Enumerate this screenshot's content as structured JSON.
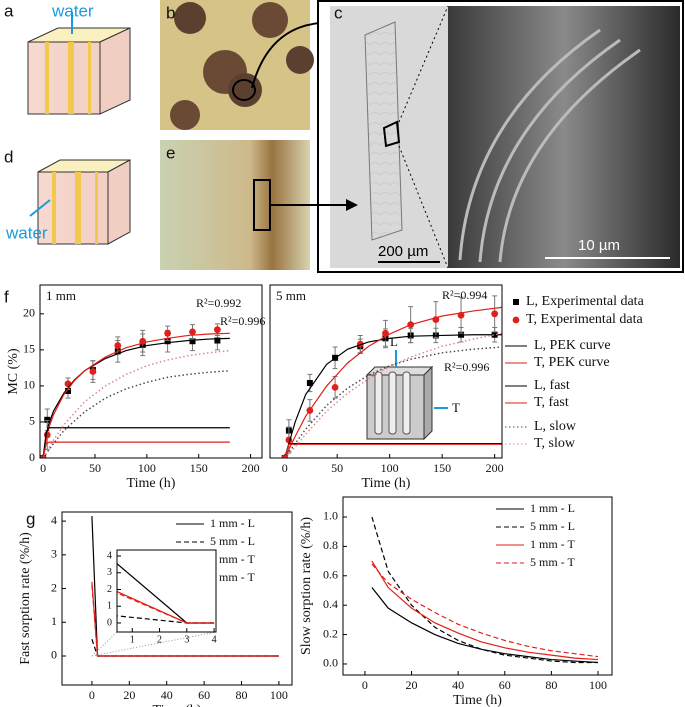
{
  "figure": {
    "panel_labels": [
      "a",
      "b",
      "c",
      "d",
      "e",
      "f",
      "g"
    ],
    "water_labels": [
      "water",
      "water"
    ],
    "scale_bars": [
      "200 µm",
      "10 µm"
    ],
    "inset_labels": [
      "L",
      "T"
    ]
  },
  "chart_data": [
    {
      "type": "line",
      "title": "1 mm",
      "xlabel": "Time (h)",
      "ylabel": "MC (%)",
      "xlim": [
        -3,
        211
      ],
      "ylim": [
        0,
        24
      ],
      "xticks": [
        0,
        50,
        100,
        150,
        200
      ],
      "yticks": [
        0,
        5,
        10,
        15,
        20
      ],
      "annotations": [
        "R²=0.992",
        "R²=0.996"
      ],
      "series": [
        {
          "color": "#000000",
          "marker": "square",
          "x": [
            0,
            4,
            24,
            48,
            72,
            96,
            120,
            144,
            168
          ],
          "values": [
            0,
            5.3,
            9.3,
            12.2,
            14.8,
            15.7,
            16.2,
            16.2,
            16.3
          ],
          "errors": [
            0,
            1.5,
            1,
            1.3,
            1.5,
            1.5,
            1.5,
            1.3,
            1.3
          ]
        },
        {
          "color": "#e0201b",
          "marker": "circle",
          "x": [
            0,
            4,
            24,
            48,
            72,
            96,
            120,
            144,
            168
          ],
          "values": [
            0,
            3.2,
            10.3,
            12,
            15.6,
            16.2,
            17.3,
            17.5,
            17.8
          ],
          "errors": [
            0,
            2,
            0.8,
            1.5,
            1.2,
            1.5,
            1,
            1,
            0.8
          ]
        },
        {
          "color": "#000000",
          "dash": "solid",
          "x": [
            0,
            5,
            10,
            20,
            30,
            40,
            60,
            80,
            100,
            120,
            140,
            160,
            180
          ],
          "values": [
            0,
            4.5,
            6.5,
            9,
            10.8,
            12.1,
            13.8,
            14.9,
            15.6,
            16,
            16.3,
            16.5,
            16.6
          ]
        },
        {
          "color": "#e0201b",
          "dash": "solid",
          "x": [
            0,
            5,
            10,
            20,
            30,
            40,
            60,
            80,
            100,
            120,
            140,
            160,
            180
          ],
          "values": [
            0,
            4,
            6,
            8.8,
            10.7,
            12.1,
            14,
            15.3,
            16.1,
            16.6,
            17,
            17.2,
            17.3
          ]
        },
        {
          "color": "#000000",
          "dash": "solid",
          "x": [
            0,
            3,
            6,
            180
          ],
          "values": [
            0,
            3.6,
            4.2,
            4.2
          ]
        },
        {
          "color": "#e0201b",
          "dash": "solid",
          "x": [
            0,
            3,
            6,
            180
          ],
          "values": [
            0,
            2,
            2.2,
            2.2
          ]
        },
        {
          "color": "#444444",
          "dash": "dotted",
          "x": [
            0,
            10,
            20,
            40,
            60,
            80,
            100,
            120,
            140,
            160,
            180
          ],
          "values": [
            0,
            2,
            3.8,
            6.4,
            8.3,
            9.6,
            10.5,
            11.2,
            11.6,
            11.9,
            12.1
          ]
        },
        {
          "color": "#e08080",
          "dash": "dotted",
          "x": [
            0,
            10,
            20,
            40,
            60,
            80,
            100,
            120,
            140,
            160,
            180
          ],
          "values": [
            0,
            2.5,
            4.6,
            7.8,
            10,
            11.6,
            12.8,
            13.6,
            14.2,
            14.6,
            14.9
          ]
        }
      ]
    },
    {
      "type": "line",
      "title": "5 mm",
      "xlabel": "Time (h)",
      "xlim": [
        -14,
        207
      ],
      "ylim": [
        0,
        24
      ],
      "xticks": [
        0,
        50,
        100,
        150,
        200
      ],
      "legend": "outside right",
      "annotations": [
        "R²=0.994",
        "R²=0.996"
      ],
      "series": [
        {
          "name": "L, Experimental data",
          "color": "#000000",
          "marker": "square",
          "x": [
            0,
            4,
            24,
            48,
            72,
            96,
            120,
            144,
            168,
            200
          ],
          "values": [
            0,
            3.8,
            10.4,
            13.9,
            15.5,
            16.6,
            17,
            17,
            17.1,
            17.1
          ],
          "errors": [
            0,
            1.5,
            1.2,
            1.5,
            1,
            1.3,
            1,
            1,
            1,
            1
          ]
        },
        {
          "name": "T, Experimental data",
          "color": "#e0201b",
          "marker": "circle",
          "x": [
            0,
            4,
            24,
            48,
            72,
            96,
            120,
            144,
            168,
            200
          ],
          "values": [
            0,
            2.5,
            6.6,
            9.8,
            15.8,
            17.3,
            18.5,
            19.2,
            19.8,
            20
          ],
          "errors": [
            0,
            1.8,
            1.5,
            1.5,
            1.2,
            1.8,
            2.5,
            2.5,
            2.5,
            2.5
          ]
        },
        {
          "name": "L, PEK curve",
          "color": "#000000",
          "dash": "solid",
          "x": [
            0,
            10,
            20,
            40,
            60,
            80,
            100,
            120,
            150,
            180,
            207
          ],
          "values": [
            0,
            5,
            8.8,
            13,
            15.1,
            16.1,
            16.6,
            16.9,
            17,
            17.1,
            17.1
          ]
        },
        {
          "name": "T, PEK curve",
          "color": "#e0201b",
          "dash": "solid",
          "x": [
            0,
            10,
            20,
            40,
            60,
            80,
            100,
            120,
            150,
            180,
            207
          ],
          "values": [
            0,
            3,
            5.8,
            10,
            13.2,
            15.5,
            17.2,
            18.5,
            19.7,
            20.4,
            20.9
          ]
        },
        {
          "name": "L, fast",
          "color": "#000000",
          "dash": "solid",
          "x": [
            0,
            4,
            207
          ],
          "values": [
            0,
            2,
            2
          ]
        },
        {
          "name": "T, fast",
          "color": "#e0201b",
          "dash": "solid",
          "x": [
            0,
            4,
            207
          ],
          "values": [
            0,
            1.9,
            1.9
          ]
        },
        {
          "name": "L, slow",
          "color": "#444444",
          "dash": "dotted",
          "x": [
            0,
            10,
            20,
            40,
            60,
            80,
            100,
            120,
            150,
            180,
            207
          ],
          "values": [
            0,
            2,
            4,
            7.3,
            9.7,
            11.5,
            12.8,
            13.7,
            14.6,
            15.1,
            15.4
          ]
        },
        {
          "name": "T, slow",
          "color": "#e08080",
          "dash": "dotted",
          "x": [
            0,
            10,
            20,
            40,
            60,
            80,
            100,
            120,
            150,
            180,
            207
          ],
          "values": [
            0,
            1.5,
            3.3,
            6.5,
            9,
            11,
            12.7,
            14,
            15.5,
            16.5,
            17.3
          ]
        }
      ]
    },
    {
      "type": "line",
      "xlabel": "Time (h)",
      "ylabel": "Fast sorption rate (%/h)",
      "xlim": [
        -16,
        107
      ],
      "ylim": [
        -0.86,
        4.27
      ],
      "xticks": [
        0,
        20,
        40,
        60,
        80,
        100
      ],
      "yticks": [
        0,
        1,
        2,
        3,
        4
      ],
      "legend": "upper right",
      "series": [
        {
          "name": "1 mm - L",
          "color": "#000000",
          "dash": "solid",
          "x": [
            0,
            3,
            100
          ],
          "values": [
            4.15,
            0,
            0
          ]
        },
        {
          "name": "5 mm - L",
          "color": "#000000",
          "dash": "dashed",
          "x": [
            0,
            3,
            100
          ],
          "values": [
            0.5,
            0,
            0
          ]
        },
        {
          "name": "1 mm - T",
          "color": "#e0201b",
          "dash": "solid",
          "x": [
            0,
            3,
            100
          ],
          "values": [
            2.2,
            0,
            0
          ]
        },
        {
          "name": "5 mm - T",
          "color": "#e0201b",
          "dash": "dashed",
          "x": [
            0,
            3,
            100
          ],
          "values": [
            2.1,
            0,
            0
          ]
        }
      ]
    },
    {
      "type": "line",
      "xlim": [
        0.44,
        4.07
      ],
      "ylim": [
        -0.54,
        4.36
      ],
      "xticks": [
        1,
        2,
        3,
        4
      ],
      "yticks": [
        0,
        1,
        2,
        3,
        4
      ],
      "series": [
        {
          "color": "#000000",
          "dash": "solid",
          "x": [
            0,
            3,
            4
          ],
          "values": [
            4.15,
            0,
            0
          ]
        },
        {
          "color": "#000000",
          "dash": "dashed",
          "x": [
            0,
            3,
            4
          ],
          "values": [
            0.5,
            0,
            0
          ]
        },
        {
          "color": "#e0201b",
          "dash": "solid",
          "x": [
            0,
            3,
            4
          ],
          "values": [
            2.2,
            0,
            0
          ]
        },
        {
          "color": "#e0201b",
          "dash": "dashed",
          "x": [
            0,
            3,
            4
          ],
          "values": [
            2.1,
            0,
            0
          ]
        }
      ]
    },
    {
      "type": "line",
      "xlabel": "Time (h)",
      "ylabel": "Slow sorption rate (%/h)",
      "xlim": [
        -9.4,
        106
      ],
      "ylim": [
        -0.075,
        1.136
      ],
      "xticks": [
        0,
        20,
        40,
        60,
        80,
        100
      ],
      "yticks": [
        {
          "value": 0,
          "label": "0.0"
        },
        0.2,
        0.4,
        0.6,
        0.8,
        {
          "value": 1,
          "label": "1.0"
        }
      ],
      "legend": "upper right",
      "series": [
        {
          "name": "1 mm - L",
          "color": "#000000",
          "dash": "solid",
          "x": [
            3,
            10,
            20,
            30,
            40,
            50,
            60,
            70,
            80,
            90,
            100
          ],
          "values": [
            0.52,
            0.38,
            0.28,
            0.2,
            0.14,
            0.1,
            0.07,
            0.05,
            0.03,
            0.02,
            0.01
          ]
        },
        {
          "name": "5 mm - L",
          "color": "#000000",
          "dash": "dashed",
          "x": [
            3,
            10,
            20,
            30,
            40,
            50,
            60,
            70,
            80,
            90,
            100
          ],
          "values": [
            1,
            0.63,
            0.4,
            0.25,
            0.16,
            0.1,
            0.06,
            0.04,
            0.02,
            0.01,
            0.01
          ]
        },
        {
          "name": "1 mm - T",
          "color": "#e0201b",
          "dash": "solid",
          "x": [
            3,
            10,
            20,
            30,
            40,
            50,
            60,
            70,
            80,
            90,
            100
          ],
          "values": [
            0.7,
            0.52,
            0.38,
            0.28,
            0.21,
            0.15,
            0.11,
            0.08,
            0.06,
            0.04,
            0.03
          ]
        },
        {
          "name": "5 mm - T",
          "color": "#e0201b",
          "dash": "dashed",
          "x": [
            3,
            10,
            20,
            30,
            40,
            50,
            60,
            70,
            80,
            90,
            100
          ],
          "values": [
            0.68,
            0.55,
            0.44,
            0.35,
            0.27,
            0.21,
            0.16,
            0.12,
            0.09,
            0.07,
            0.05
          ]
        }
      ]
    }
  ]
}
